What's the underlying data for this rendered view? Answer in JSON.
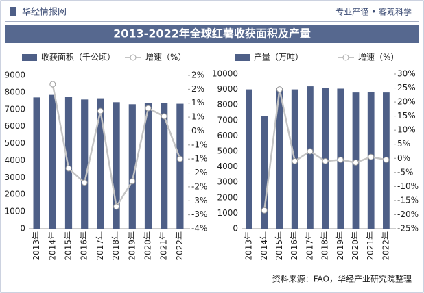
{
  "header": {
    "brand": "华经情报网",
    "slogan": "专业严谨 • 客观科学"
  },
  "title": "2013-2022年全球红薯收获面积及产量",
  "source": "资料来源：FAO，华经产业研究院整理",
  "chart_data": [
    {
      "type": "bar_line",
      "categories": [
        "2013年",
        "2014年",
        "2015年",
        "2016年",
        "2017年",
        "2018年",
        "2019年",
        "2020年",
        "2021年",
        "2022年"
      ],
      "ylim": [
        0,
        9000
      ],
      "yticks": [
        0,
        1000,
        2000,
        3000,
        4000,
        5000,
        6000,
        7000,
        8000,
        9000
      ],
      "y2lim": [
        -3.5,
        2
      ],
      "y2ticks": [
        {
          "value": -3.5,
          "label": "-4%"
        },
        {
          "value": -3,
          "label": "-3%"
        },
        {
          "value": -2.5,
          "label": "-3%"
        },
        {
          "value": -2,
          "label": "-2%"
        },
        {
          "value": -1.5,
          "label": "-2%"
        },
        {
          "value": -1,
          "label": "-1%"
        },
        {
          "value": -0.5,
          "label": "-1%"
        },
        {
          "value": 0,
          "label": "0%"
        },
        {
          "value": 0.5,
          "label": "1%"
        },
        {
          "value": 1,
          "label": "1%"
        },
        {
          "value": 1.5,
          "label": "2%"
        },
        {
          "value": 2,
          "label": "2%"
        }
      ],
      "grid": false,
      "series": [
        {
          "name": "收获面积（千公顷）",
          "color": "#4e5f87",
          "values": [
            7700,
            7850,
            7750,
            7580,
            7650,
            7420,
            7300,
            7370,
            7380,
            7330
          ]
        },
        {
          "name": "增速（%）",
          "color": "#c4c4c4",
          "axis": "y2",
          "values": [
            null,
            1.68,
            -1.34,
            -1.85,
            0.72,
            -2.71,
            -1.8,
            0.82,
            0.53,
            -1.0
          ]
        }
      ]
    },
    {
      "type": "bar_line",
      "categories": [
        "2013年",
        "2014年",
        "2015年",
        "2016年",
        "2017年",
        "2018年",
        "2019年",
        "2020年",
        "2021年",
        "2022年"
      ],
      "ylim": [
        0,
        10000
      ],
      "yticks": [
        0,
        1000,
        2000,
        3000,
        4000,
        5000,
        6000,
        7000,
        8000,
        9000,
        10000
      ],
      "y2lim": [
        -25,
        30
      ],
      "y2ticks": [
        {
          "value": -25,
          "label": "-25%"
        },
        {
          "value": -20,
          "label": "-20%"
        },
        {
          "value": -15,
          "label": "-15%"
        },
        {
          "value": -10,
          "label": "-10%"
        },
        {
          "value": -5,
          "label": "-5%"
        },
        {
          "value": 0,
          "label": "0%"
        },
        {
          "value": 5,
          "label": "5%"
        },
        {
          "value": 10,
          "label": "10%"
        },
        {
          "value": 15,
          "label": "15%"
        },
        {
          "value": 20,
          "label": "20%"
        },
        {
          "value": 25,
          "label": "25%"
        },
        {
          "value": 30,
          "label": "30%"
        }
      ],
      "grid": false,
      "series": [
        {
          "name": "产量（万吨）",
          "color": "#4e5f87",
          "values": [
            9000,
            7300,
            9100,
            9000,
            9200,
            9100,
            9050,
            8800,
            8850,
            8800
          ]
        },
        {
          "name": "增速（%）",
          "color": "#c4c4c4",
          "axis": "y2",
          "values": [
            null,
            -18.5,
            24.5,
            -1,
            2.5,
            -1,
            -0.5,
            -1.5,
            0.5,
            -0.5
          ]
        }
      ]
    }
  ]
}
